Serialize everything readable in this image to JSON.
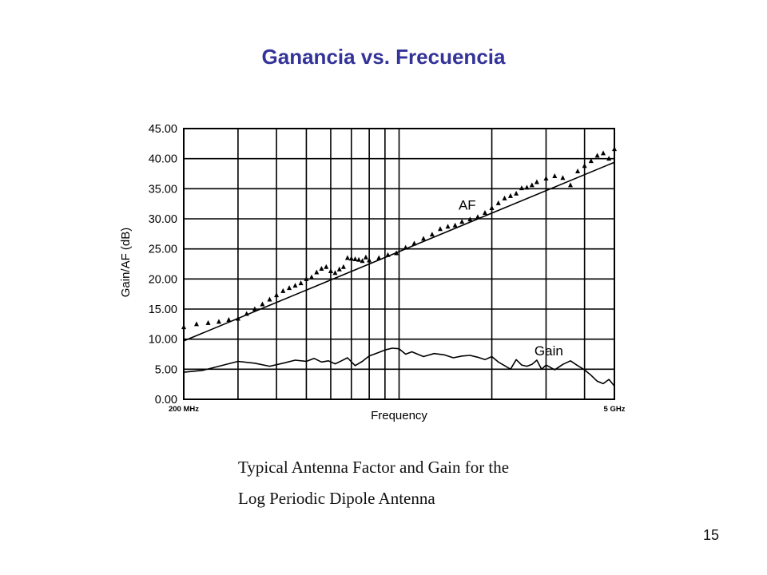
{
  "slide": {
    "title": "Ganancia vs. Frecuencia",
    "caption_line1": "Typical Antenna Factor and Gain for the",
    "caption_line2": "Log Periodic Dipole Antenna",
    "page_number": "15"
  },
  "chart_data": {
    "type": "line",
    "title": "",
    "xlabel": "Frequency",
    "ylabel": "Gain/AF (dB)",
    "x_scale": "log",
    "xlim": [
      200,
      5000
    ],
    "x_unit": "MHz",
    "x_tick_labels": [
      {
        "value": 200,
        "label": "200 MHz"
      },
      {
        "value": 5000,
        "label": "5 GHz"
      }
    ],
    "x_gridlines": [
      200,
      300,
      400,
      500,
      600,
      700,
      800,
      900,
      1000,
      2000,
      3000,
      4000,
      5000
    ],
    "ylim": [
      0,
      45
    ],
    "y_ticks": [
      0,
      5,
      10,
      15,
      20,
      25,
      30,
      35,
      40,
      45
    ],
    "y_tick_labels": [
      "0.00",
      "5.00",
      "10.00",
      "15.00",
      "20.00",
      "25.00",
      "30.00",
      "35.00",
      "40.00",
      "45.00"
    ],
    "grid": true,
    "colors": {
      "ink": "#000000",
      "title": "#333399"
    },
    "series": [
      {
        "name": "AF",
        "style": "line",
        "x": [
          200,
          5000
        ],
        "y": [
          9.7,
          39.4
        ]
      },
      {
        "name": "",
        "style": "triangle-markers",
        "x": [
          200,
          220,
          240,
          260,
          280,
          300,
          320,
          340,
          360,
          380,
          400,
          420,
          440,
          460,
          480,
          500,
          520,
          540,
          560,
          580,
          600,
          620,
          640,
          660,
          680,
          700,
          720,
          740,
          760,
          780,
          800,
          860,
          920,
          980,
          1050,
          1120,
          1200,
          1280,
          1360,
          1440,
          1520,
          1600,
          1700,
          1800,
          1900,
          2000,
          2100,
          2200,
          2300,
          2400,
          2500,
          2600,
          2700,
          2800,
          3000,
          3200,
          3400,
          3600,
          3800,
          4000,
          4200,
          4400,
          4600,
          4800,
          5000
        ],
        "y": [
          12.0,
          12.5,
          12.7,
          12.9,
          13.2,
          13.4,
          14.2,
          15.0,
          15.8,
          16.6,
          17.3,
          18.0,
          18.5,
          18.9,
          19.3,
          20.0,
          20.3,
          21.1,
          21.7,
          22.0,
          21.3,
          21.0,
          21.6,
          22.0,
          23.5,
          23.4,
          23.3,
          23.2,
          23.0,
          23.6,
          23.1,
          23.5,
          24.0,
          24.3,
          25.2,
          25.9,
          26.7,
          27.4,
          28.3,
          28.7,
          28.9,
          29.5,
          29.9,
          30.3,
          31.0,
          31.8,
          32.6,
          33.4,
          33.8,
          34.2,
          35.1,
          35.2,
          35.6,
          36.1,
          36.7,
          37.1,
          36.8,
          35.6,
          37.9,
          38.8,
          39.6,
          40.5,
          40.9,
          40.0,
          41.6
        ]
      },
      {
        "name": "Gain",
        "style": "line",
        "x": [
          200,
          230,
          260,
          300,
          340,
          380,
          420,
          460,
          500,
          530,
          560,
          590,
          620,
          650,
          680,
          720,
          760,
          800,
          850,
          900,
          950,
          1000,
          1050,
          1100,
          1200,
          1300,
          1400,
          1500,
          1600,
          1700,
          1800,
          1900,
          2000,
          2100,
          2200,
          2300,
          2400,
          2500,
          2600,
          2700,
          2800,
          2900,
          3000,
          3200,
          3400,
          3600,
          3800,
          4000,
          4200,
          4400,
          4600,
          4800,
          5000
        ],
        "y": [
          4.5,
          4.8,
          5.5,
          6.3,
          6.0,
          5.5,
          6.0,
          6.5,
          6.3,
          6.8,
          6.2,
          6.4,
          5.9,
          6.4,
          6.9,
          5.6,
          6.3,
          7.2,
          7.7,
          8.2,
          8.5,
          8.4,
          7.5,
          7.9,
          7.1,
          7.6,
          7.4,
          6.9,
          7.2,
          7.3,
          7.0,
          6.6,
          7.1,
          6.2,
          5.6,
          5.0,
          6.6,
          5.7,
          5.5,
          5.8,
          6.5,
          5.0,
          5.7,
          4.9,
          5.8,
          6.4,
          5.6,
          4.9,
          4.0,
          3.0,
          2.6,
          3.3,
          2.2
        ]
      }
    ],
    "annotations": [
      {
        "text": "AF",
        "x": 1560,
        "y": 31.5
      },
      {
        "text": "Gain",
        "x": 2750,
        "y": 7.3
      }
    ]
  }
}
